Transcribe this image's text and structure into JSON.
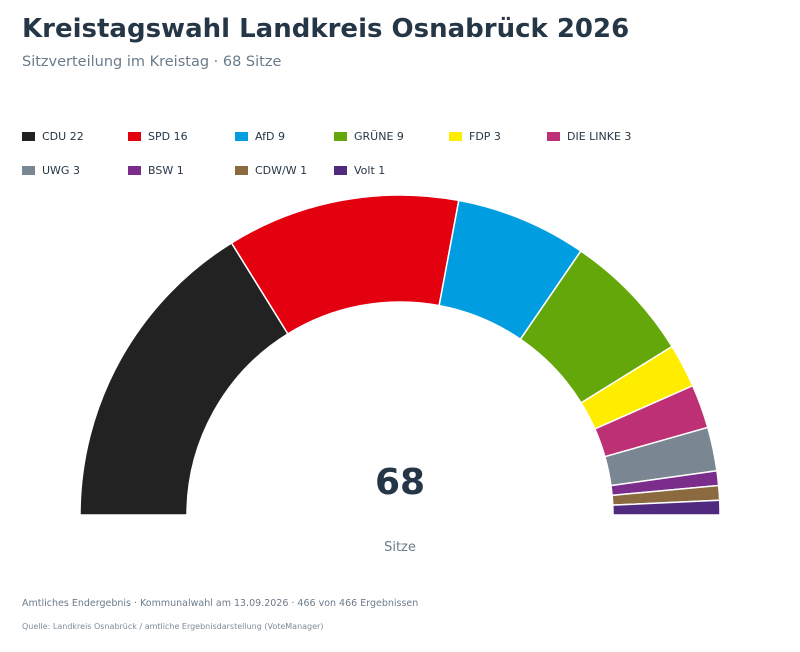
{
  "header": {
    "title": "Kreistagswahl Landkreis Osnabrück 2026",
    "subtitle": "Sitzverteilung im Kreistag · 68 Sitze"
  },
  "chart_data": {
    "type": "pie",
    "shape": "half-donut",
    "title": "Kreistagswahl Landkreis Osnabrück 2026",
    "subtitle": "Sitzverteilung im Kreistag · 68 Sitze",
    "total": 68,
    "total_label": "Sitze",
    "legend_position": "top",
    "categories": [
      "CDU",
      "SPD",
      "AfD",
      "GRÜNE",
      "FDP",
      "DIE LINKE",
      "UWG",
      "BSW",
      "CDW/W",
      "Volt"
    ],
    "values": [
      22,
      16,
      9,
      9,
      3,
      3,
      3,
      1,
      1,
      1
    ],
    "legend_labels": [
      "CDU 22",
      "SPD 16",
      "AfD 9",
      "GRÜNE 9",
      "FDP 3",
      "DIE LINKE 3",
      "UWG 3",
      "BSW 1",
      "CDW/W 1",
      "Volt 1"
    ],
    "colors": [
      "#222222",
      "#e3000f",
      "#009ee0",
      "#64a70b",
      "#ffed00",
      "#be3075",
      "#7a8691",
      "#7b2d8b",
      "#8b6a40",
      "#4f2a7f"
    ]
  },
  "footer": {
    "note": "Amtliches Endergebnis · Kommunalwahl am 13.09.2026 · 466 von 466 Ergebnissen",
    "source": "Quelle: Landkreis Osnabrück / amtliche Ergebnisdarstellung (VoteManager)"
  }
}
